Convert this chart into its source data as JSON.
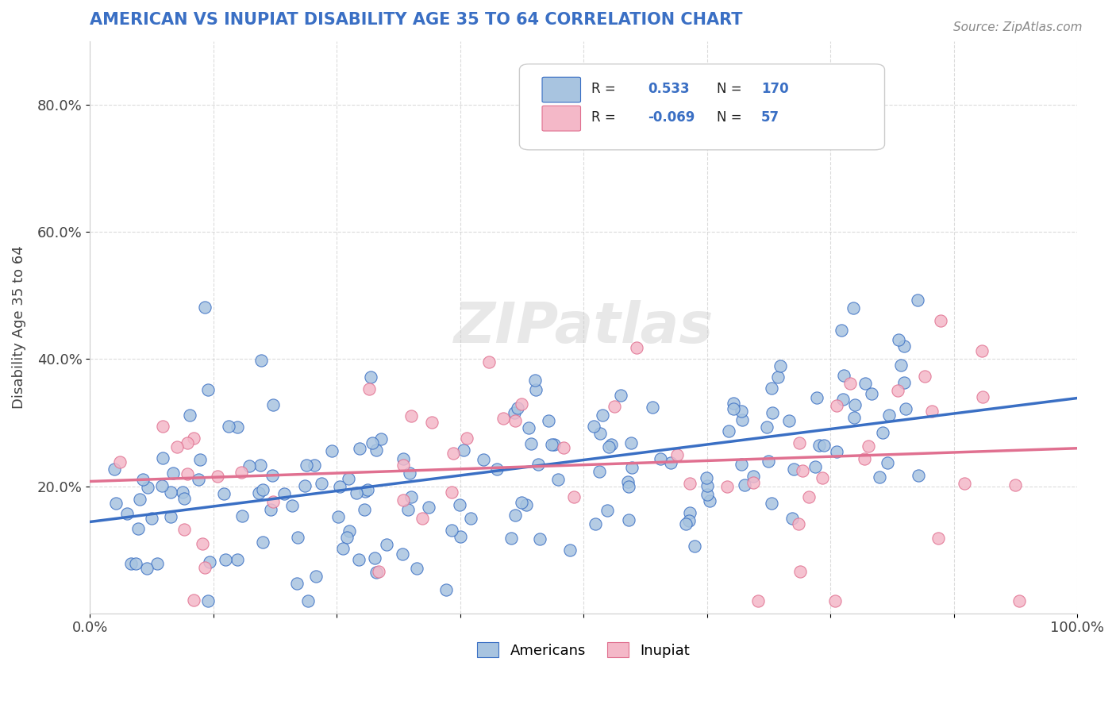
{
  "title": "AMERICAN VS INUPIAT DISABILITY AGE 35 TO 64 CORRELATION CHART",
  "source": "Source: ZipAtlas.com",
  "xlabel": "",
  "ylabel": "Disability Age 35 to 64",
  "xlim": [
    0.0,
    1.0
  ],
  "ylim": [
    0.0,
    0.9
  ],
  "xtick_labels": [
    "0.0%",
    "100.0%"
  ],
  "xtick_positions": [
    0.0,
    1.0
  ],
  "ytick_labels": [
    "20.0%",
    "40.0%",
    "60.0%",
    "80.0%"
  ],
  "ytick_positions": [
    0.2,
    0.4,
    0.6,
    0.8
  ],
  "legend_labels": [
    "Americans",
    "Inupiat"
  ],
  "legend_r_values": [
    "R =  0.533",
    "R = -0.069"
  ],
  "legend_n_values": [
    "N = 170",
    "N =  57"
  ],
  "american_color": "#a8c4e0",
  "inupiat_color": "#f4b8c8",
  "american_line_color": "#3a6fc4",
  "inupiat_line_color": "#e07090",
  "watermark": "ZIPatlas",
  "r_american": 0.533,
  "n_american": 170,
  "r_inupiat": -0.069,
  "n_inupiat": 57,
  "background_color": "#ffffff",
  "grid_color": "#cccccc",
  "title_color": "#3a6fc4",
  "source_color": "#888888"
}
